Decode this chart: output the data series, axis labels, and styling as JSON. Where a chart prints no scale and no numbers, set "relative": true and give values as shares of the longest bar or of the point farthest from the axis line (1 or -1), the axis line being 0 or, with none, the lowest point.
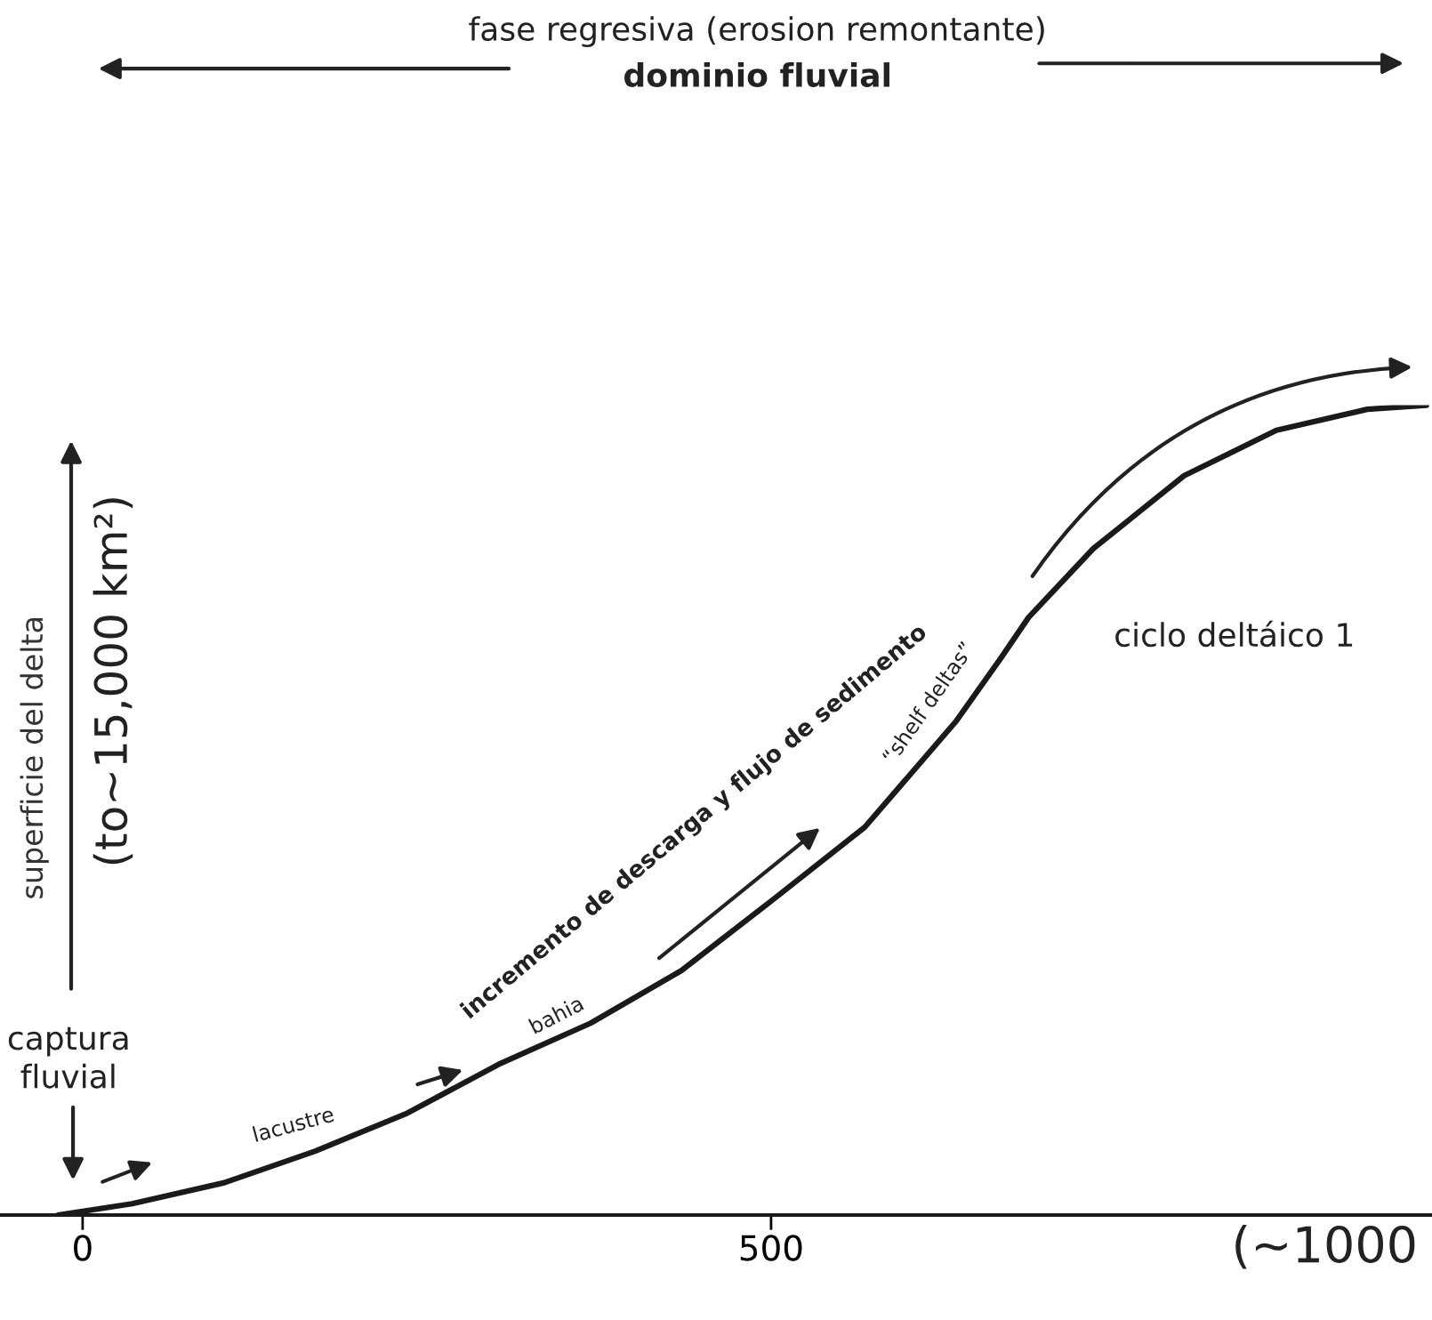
{
  "chart_data": {
    "type": "line",
    "title": "fase regresiva (erosion remontante)",
    "subtitle": "dominio fluvial",
    "ylabel": "superficie del delta",
    "relative": true,
    "x": [
      -18,
      36,
      103,
      169,
      236,
      302,
      369,
      435,
      501,
      568,
      634,
      667,
      687,
      734,
      800,
      867,
      933,
      976
    ],
    "series": [
      {
        "color": "#1a1a1a",
        "values": [
          0,
          0.014,
          0.04,
          0.079,
          0.126,
          0.186,
          0.237,
          0.302,
          0.389,
          0.479,
          0.609,
          0.688,
          0.738,
          0.823,
          0.913,
          0.969,
          0.995,
          1.0
        ]
      }
    ],
    "xlim": [
      -60,
      980
    ],
    "xticks": [
      0,
      500
    ],
    "tick_labels": "x",
    "grid": false,
    "legend": false,
    "marker": "none",
    "line_style": "solid",
    "annotations": [
      "(to~15,000 km²)",
      "captura\nfluvial",
      "lacustre",
      "bahia",
      "incremento de descarga y flujo de sedimento",
      "“shelf deltas”",
      "ciclo deltáico 1",
      "(~1000"
    ]
  }
}
